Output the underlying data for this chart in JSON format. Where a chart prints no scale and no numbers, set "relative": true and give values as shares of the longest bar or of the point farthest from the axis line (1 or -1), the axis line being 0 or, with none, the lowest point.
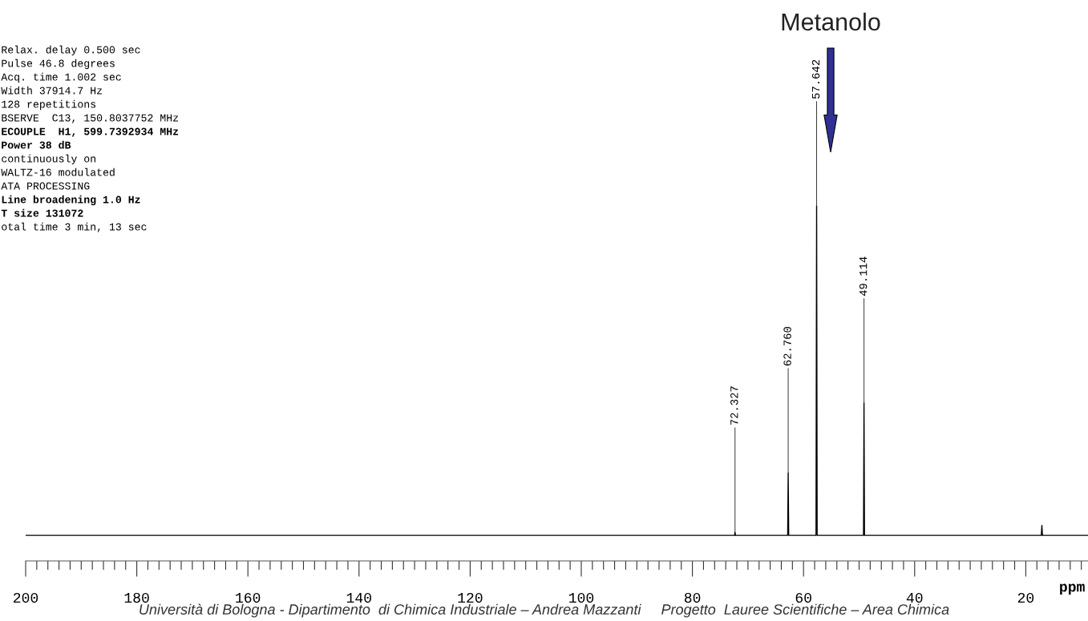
{
  "chart_data": {
    "type": "line",
    "relative": true,
    "xlabel": "ppm",
    "tick_labels": "x",
    "grid": false,
    "legend": false,
    "marker": "none",
    "line_style": "solid",
    "xlim": [
      200,
      8.8
    ],
    "xticks": [
      200,
      180,
      160,
      140,
      120,
      100,
      80,
      60,
      40,
      20
    ],
    "series": [
      {
        "color": "#000000",
        "x": [
          200,
          150,
          100,
          73,
          72.4,
          72.327,
          72.25,
          63,
          62.85,
          62.76,
          62.67,
          58,
          57.75,
          57.642,
          57.55,
          50,
          49.2,
          49.114,
          49.03,
          18,
          17.2,
          17.1,
          17.0,
          8.8
        ],
        "values": [
          0.072,
          0.072,
          0.072,
          0.072,
          0.072,
          0.081,
          0.072,
          0.072,
          0.072,
          0.248,
          0.072,
          0.072,
          0.072,
          1,
          0.072,
          0.072,
          0.072,
          0.445,
          0.072,
          0.072,
          0.072,
          0.1,
          0.072,
          0.072
        ]
      }
    ],
    "annotations": [
      {
        "text": "72.327",
        "x": 72.327,
        "y": 0.081
      },
      {
        "text": "62.760",
        "x": 62.76,
        "y": 0.248
      },
      {
        "text": "57.642",
        "x": 57.642,
        "y": 1
      },
      {
        "text": "49.114",
        "x": 49.114,
        "y": 0.445
      },
      "Metanolo",
      "Relax. delay 0.500 sec",
      "Pulse 46.8 degrees",
      "Acq. time 1.002 sec",
      "Width 37914.7 Hz",
      "128 repetitions",
      "BSERVE  C13, 150.8037752 MHz",
      "ECOUPLE  H1, 599.7392934 MHz",
      "Power 38 dB",
      "continuously on",
      "WALTZ-16 modulated",
      "ATA PROCESSING",
      "Line broadening 1.0 Hz",
      "T size 131072",
      "otal time 3 min, 13 sec",
      "Università di Bologna - Dipartimento  di Chimica Industriale – Andrea Mazzanti     Progetto  Lauree Scientifiche – Area Chimica"
    ]
  }
}
